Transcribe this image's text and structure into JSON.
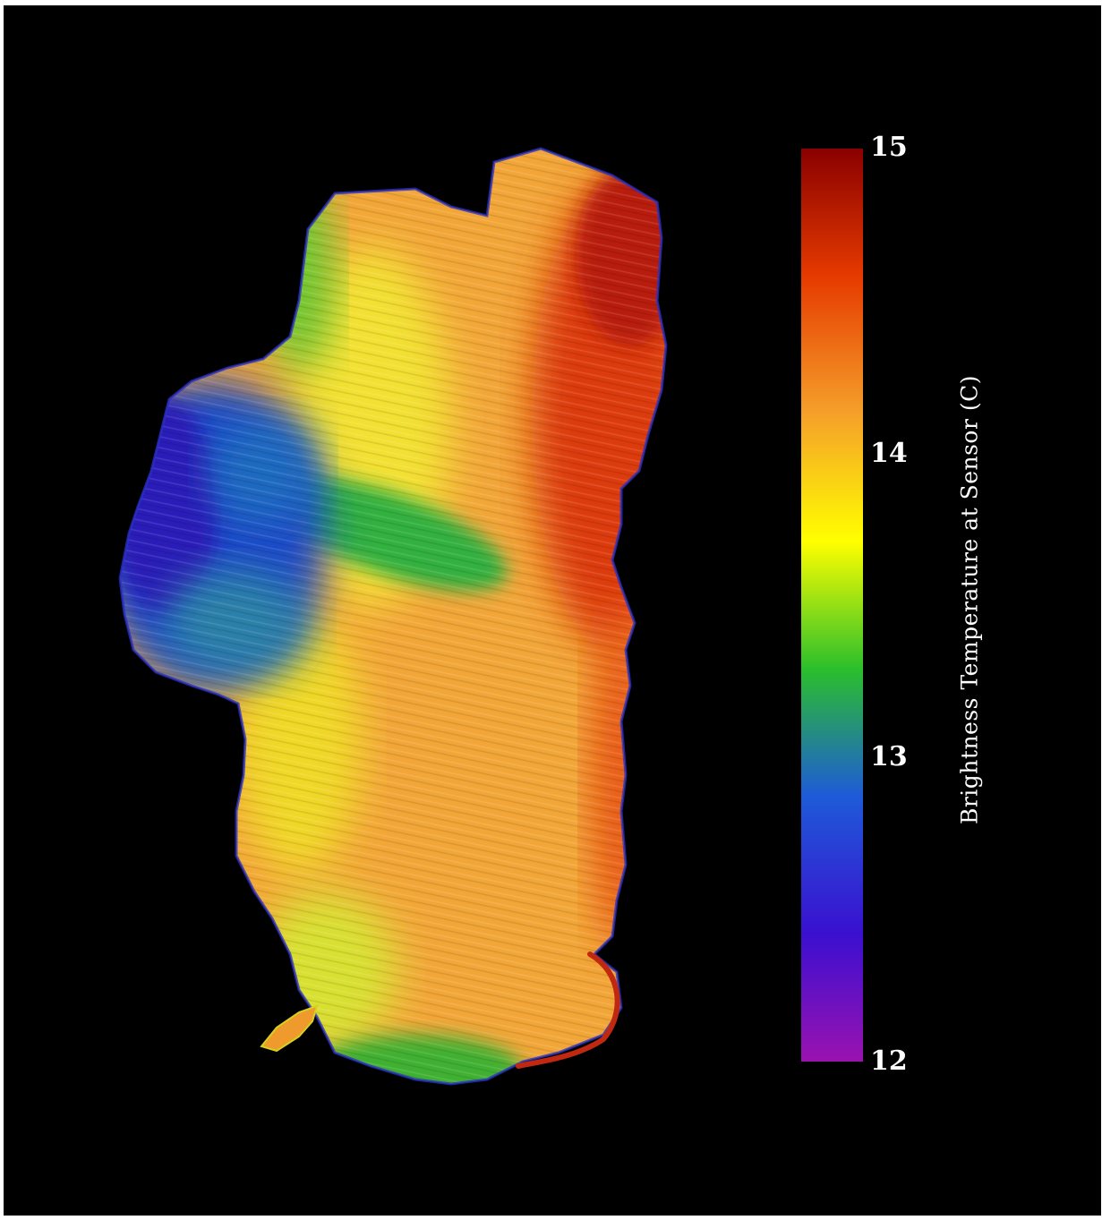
{
  "colorbar": {
    "title": "Brightness Temperature at Sensor (C)",
    "min": 12,
    "max": 15,
    "ticks": [
      "15",
      "14",
      "13",
      "12"
    ],
    "colors": [
      "#8a0000",
      "#e63a00",
      "#f5a02a",
      "#ffff00",
      "#2bbf2b",
      "#1e5ad8",
      "#3a10d0",
      "#9a12b0"
    ]
  },
  "map": {
    "background": "#000000",
    "colors": {
      "warm_core": "#f0a030",
      "hot_east": "#d83010",
      "cool_west": "#1a40c8",
      "transition": "#e8e820",
      "edge_green": "#30b030"
    }
  }
}
